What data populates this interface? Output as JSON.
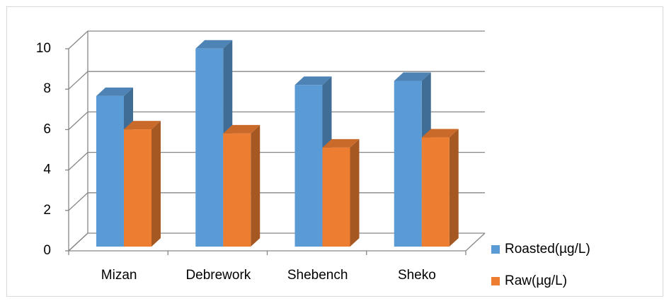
{
  "chart_data": {
    "type": "bar3d",
    "categories": [
      "Mizan",
      "Debrework",
      "Shebench",
      "Sheko"
    ],
    "series": [
      {
        "name": "Roasted(µg/L)",
        "color": "#5b9bd5",
        "values": [
          7.45,
          9.8,
          8.0,
          8.2
        ]
      },
      {
        "name": "Raw(µg/L)",
        "color": "#ed7d31",
        "values": [
          5.8,
          5.6,
          4.9,
          5.4
        ]
      }
    ],
    "ylim": [
      0,
      10
    ],
    "yticks": [
      0,
      2,
      4,
      6,
      8,
      10
    ],
    "grid": true,
    "legend": "right"
  }
}
